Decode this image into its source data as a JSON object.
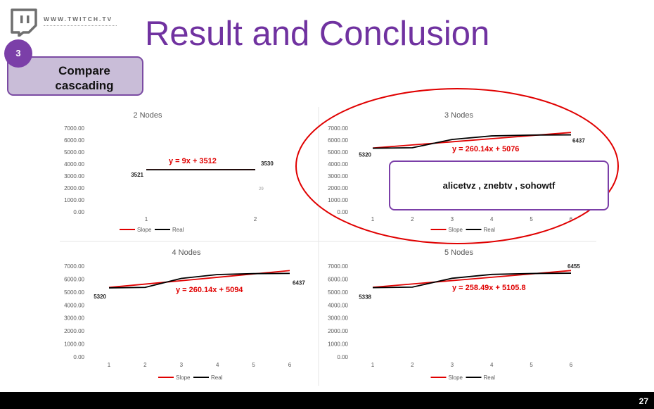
{
  "header": {
    "logo_icon": "twitch-icon",
    "url": "WWW.TWITCH.TV",
    "title": "Result and Conclusion"
  },
  "step": {
    "number": "3",
    "label_line1": "Compare",
    "label_line2": "cascading"
  },
  "callout": {
    "text": "alicetvz , znebtv , sohowtf"
  },
  "footer": {
    "page_number": "27"
  },
  "colors": {
    "title": "#7032a0",
    "accent": "#7b3fa8",
    "slope": "#e00000",
    "real": "#000000",
    "highlight_ellipse": "#e00000"
  },
  "chart_data": [
    {
      "type": "line",
      "title": "2 Nodes",
      "categories": [
        "1",
        "2"
      ],
      "ylim": [
        0,
        7000
      ],
      "yticks": [
        "7000.00",
        "6000.00",
        "5000.00",
        "4000.00",
        "3000.00",
        "2000.00",
        "1000.00",
        "0.00"
      ],
      "series": [
        {
          "name": "Slope",
          "values": [
            3521,
            3530
          ]
        },
        {
          "name": "Real",
          "values": [
            3521,
            3530
          ]
        }
      ],
      "data_labels": [
        "3521",
        "3530"
      ],
      "annotations": [
        "29"
      ],
      "equation": "y = 9x + 3512",
      "legend": "bottom",
      "legend_entries": [
        "Slope",
        "Real"
      ]
    },
    {
      "type": "line",
      "title": "3 Nodes",
      "categories": [
        "1",
        "2",
        "3",
        "4",
        "5",
        "6"
      ],
      "ylim": [
        0,
        7000
      ],
      "yticks": [
        "7000.00",
        "6000.00",
        "5000.00",
        "4000.00",
        "3000.00",
        "2000.00",
        "1000.00",
        "0.00"
      ],
      "series": [
        {
          "name": "Slope",
          "values": [
            5336,
            5596,
            5856,
            6117,
            6377,
            6637
          ]
        },
        {
          "name": "Real",
          "values": [
            5320,
            5360,
            6050,
            6350,
            6420,
            6437
          ]
        }
      ],
      "data_labels": [
        "5320",
        "6437"
      ],
      "equation": "y = 260.14x + 5076",
      "legend": "bottom",
      "legend_entries": [
        "Slope",
        "Real"
      ]
    },
    {
      "type": "line",
      "title": "4 Nodes",
      "categories": [
        "1",
        "2",
        "3",
        "4",
        "5",
        "6"
      ],
      "ylim": [
        0,
        7000
      ],
      "yticks": [
        "7000.00",
        "6000.00",
        "5000.00",
        "4000.00",
        "3000.00",
        "2000.00",
        "1000.00",
        "0.00"
      ],
      "series": [
        {
          "name": "Slope",
          "values": [
            5354,
            5614,
            5874,
            6135,
            6395,
            6655
          ]
        },
        {
          "name": "Real",
          "values": [
            5320,
            5360,
            6050,
            6350,
            6420,
            6437
          ]
        }
      ],
      "data_labels": [
        "5320",
        "6437"
      ],
      "equation": "y = 260.14x + 5094",
      "legend": "bottom",
      "legend_entries": [
        "Slope",
        "Real"
      ]
    },
    {
      "type": "line",
      "title": "5 Nodes",
      "categories": [
        "1",
        "2",
        "3",
        "4",
        "5",
        "6"
      ],
      "ylim": [
        0,
        7000
      ],
      "yticks": [
        "7000.00",
        "6000.00",
        "5000.00",
        "4000.00",
        "3000.00",
        "2000.00",
        "1000.00",
        "0.00"
      ],
      "series": [
        {
          "name": "Slope",
          "values": [
            5364,
            5623,
            5881,
            6140,
            6398,
            6657
          ]
        },
        {
          "name": "Real",
          "values": [
            5338,
            5380,
            6060,
            6360,
            6430,
            6455
          ]
        }
      ],
      "data_labels": [
        "5338",
        "6455"
      ],
      "equation": "y = 258.49x + 5105.8",
      "legend": "bottom",
      "legend_entries": [
        "Slope",
        "Real"
      ]
    }
  ]
}
